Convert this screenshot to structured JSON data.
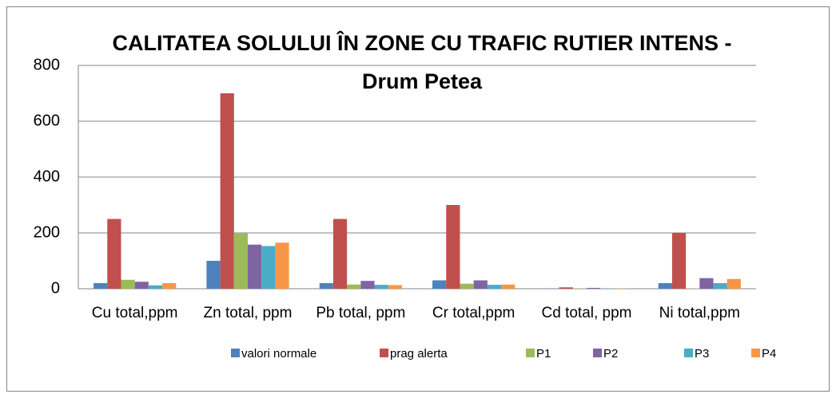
{
  "chart_data": {
    "type": "bar",
    "title": "CALITATEA SOLULUI ÎN ZONE CU TRAFIC RUTIER INTENS - Drum Petea",
    "categories": [
      "Cu total,ppm",
      "Zn total, ppm",
      "Pb total, ppm",
      "Cr total,ppm",
      "Cd total, ppm",
      "Ni total,ppm"
    ],
    "series": [
      {
        "name": "valori normale",
        "color": "#4f81bd",
        "values": [
          20,
          100,
          20,
          30,
          1,
          20
        ]
      },
      {
        "name": "prag alerta",
        "color": "#c0504d",
        "values": [
          250,
          700,
          250,
          300,
          5,
          200
        ]
      },
      {
        "name": "P1",
        "color": "#9bbb59",
        "values": [
          32,
          198,
          15,
          18,
          1,
          1
        ]
      },
      {
        "name": "P2",
        "color": "#8064a2",
        "values": [
          25,
          158,
          28,
          30,
          3,
          38
        ]
      },
      {
        "name": "P3",
        "color": "#4bacc6",
        "values": [
          12,
          153,
          14,
          14,
          1,
          20
        ]
      },
      {
        "name": "P4",
        "color": "#f79646",
        "values": [
          20,
          165,
          13,
          15,
          1,
          35
        ]
      }
    ],
    "ylim": [
      0,
      800
    ],
    "yticks": [
      0,
      200,
      400,
      600,
      800
    ],
    "grid": true,
    "legend": "bottom"
  }
}
